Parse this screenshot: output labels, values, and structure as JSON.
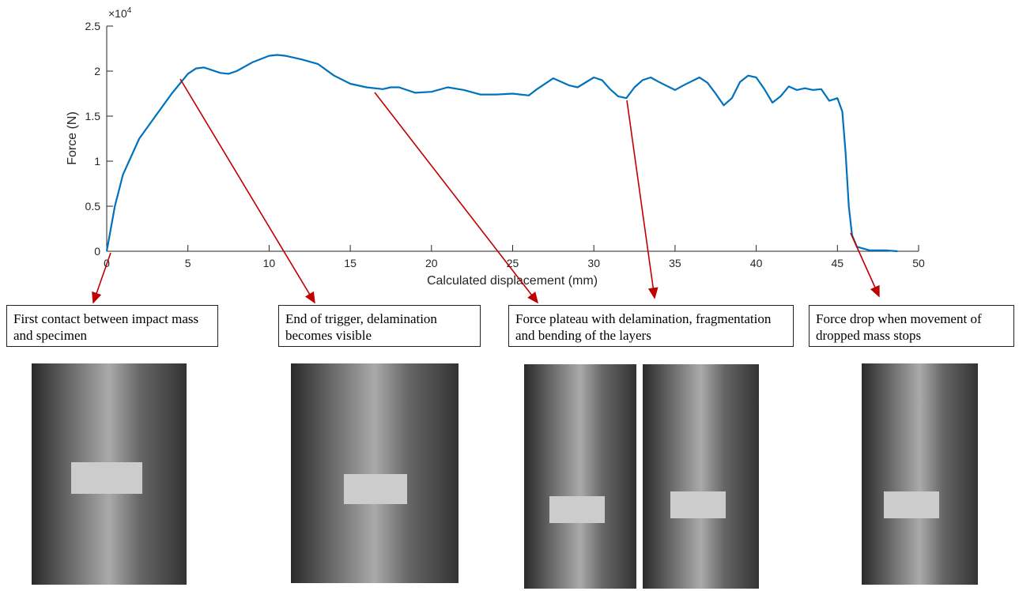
{
  "chart_data": {
    "type": "line",
    "xlabel": "Calculated displacement (mm)",
    "ylabel": "Force (N)",
    "y_multiplier": {
      "base": "×10",
      "exponent": "4"
    },
    "color": "#0072bd",
    "x": [
      0,
      0.5,
      1,
      1.5,
      2,
      3,
      4,
      5,
      5.5,
      6,
      7,
      7.5,
      8,
      9,
      10,
      10.5,
      11,
      12,
      13,
      14,
      15,
      16,
      17,
      17.5,
      18,
      19,
      20,
      21,
      22,
      23,
      24,
      25,
      26,
      26.5,
      27.5,
      28.5,
      29,
      30,
      30.5,
      31,
      31.5,
      32,
      32.5,
      33,
      33.5,
      34,
      35,
      35.5,
      36.5,
      37,
      37.5,
      38,
      38.5,
      39,
      39.5,
      40,
      40.5,
      41,
      41.5,
      42,
      42.5,
      43,
      43.5,
      44,
      44.5,
      45,
      45.3,
      45.5,
      45.7,
      45.9,
      46.2,
      47,
      48,
      48.7
    ],
    "values": [
      0,
      0.5,
      0.85,
      1.05,
      1.25,
      1.5,
      1.75,
      1.97,
      2.03,
      2.04,
      1.98,
      1.97,
      2.0,
      2.1,
      2.17,
      2.18,
      2.17,
      2.13,
      2.08,
      1.95,
      1.86,
      1.82,
      1.8,
      1.82,
      1.82,
      1.76,
      1.77,
      1.82,
      1.79,
      1.74,
      1.74,
      1.75,
      1.73,
      1.8,
      1.92,
      1.84,
      1.82,
      1.93,
      1.9,
      1.8,
      1.72,
      1.7,
      1.82,
      1.9,
      1.93,
      1.88,
      1.79,
      1.84,
      1.93,
      1.87,
      1.75,
      1.62,
      1.7,
      1.88,
      1.95,
      1.93,
      1.8,
      1.65,
      1.72,
      1.83,
      1.79,
      1.81,
      1.79,
      1.8,
      1.67,
      1.7,
      1.55,
      1.1,
      0.5,
      0.18,
      0.05,
      0.01,
      0.01,
      0
    ],
    "xlim": [
      0,
      50
    ],
    "xticks": [
      0,
      5,
      10,
      15,
      20,
      25,
      30,
      35,
      40,
      45,
      50
    ],
    "ylim": [
      0,
      2.5
    ],
    "yticks": [
      0,
      0.5,
      1,
      1.5,
      2,
      2.5
    ],
    "annotations": [
      {
        "text": "First contact between impact mass and specimen"
      },
      {
        "text": "End of trigger,  delamination becomes visible"
      },
      {
        "text": "Force plateau  with delamination, fragmentation and bending of the layers"
      },
      {
        "text": "Force drop when movement of dropped mass stops"
      }
    ]
  }
}
